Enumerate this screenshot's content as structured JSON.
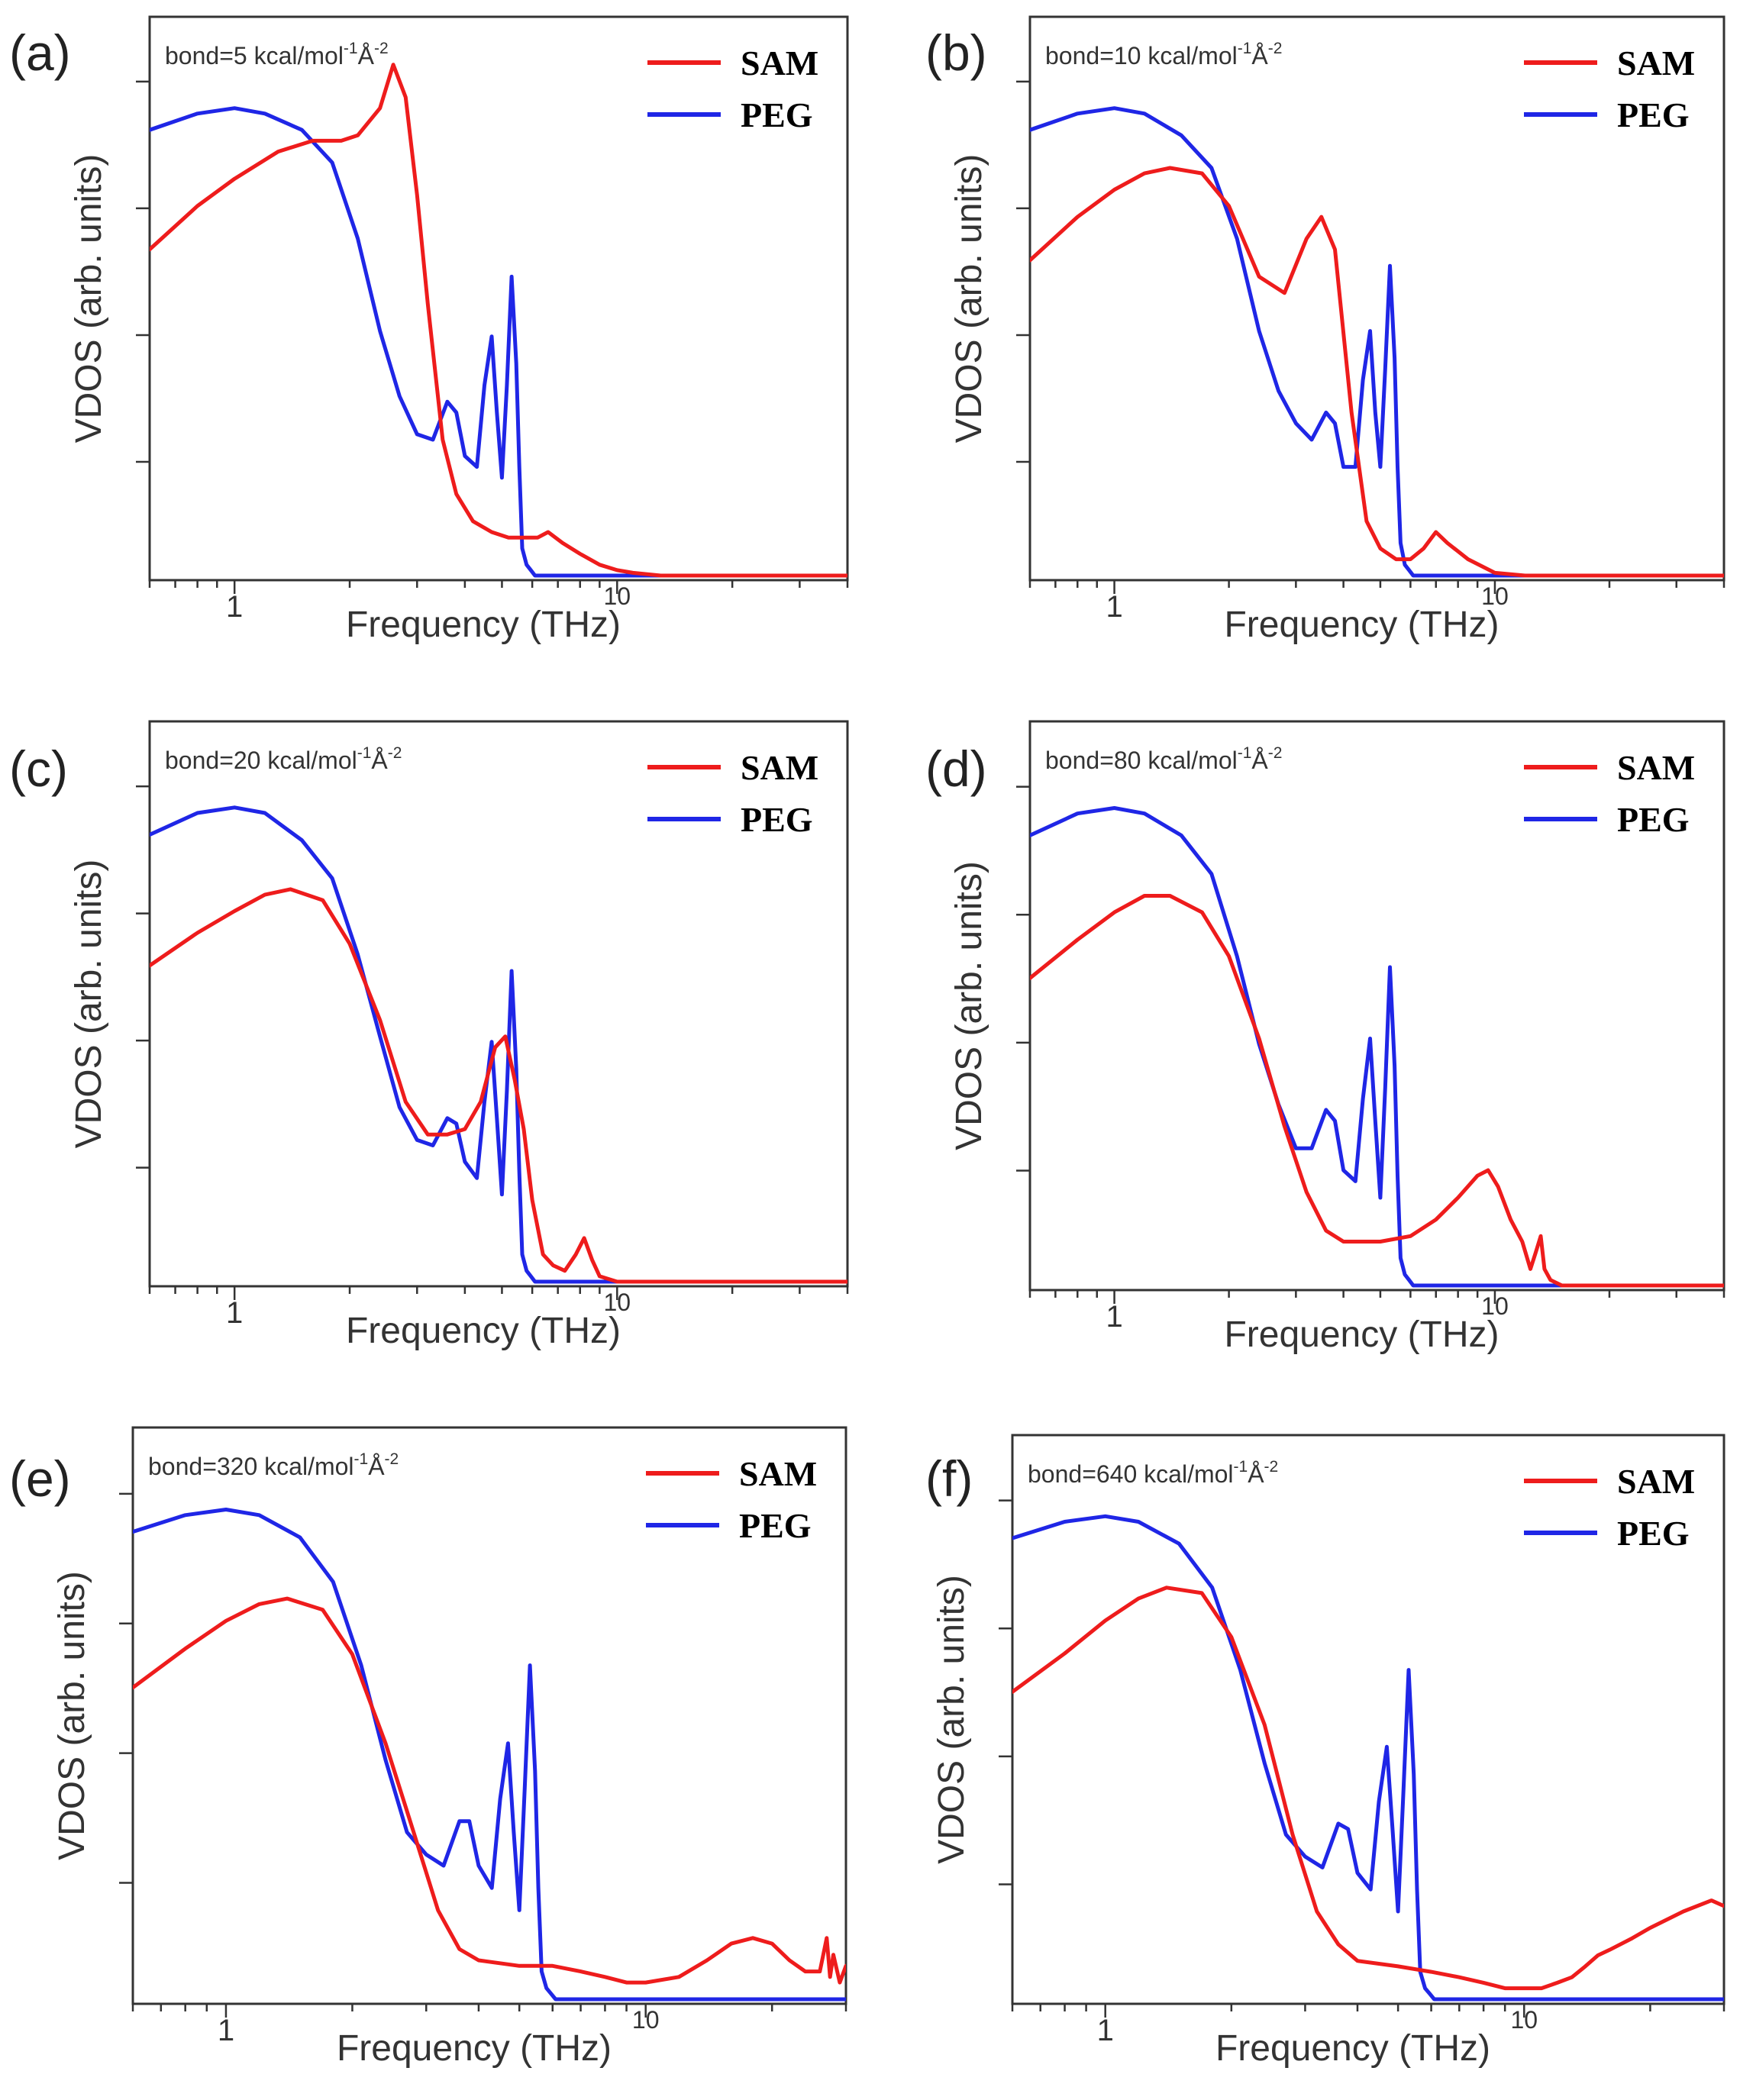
{
  "colors": {
    "SAM": "#ee1c1c",
    "PEG": "#1f26e6"
  },
  "chart_data": [
    {
      "type": "line",
      "panel": "(a)",
      "annotation": {
        "text": "bond=5 kcal/mol",
        "sup1": "-1",
        "mid": "Å",
        "sup2": "-2"
      },
      "xlabel": "Frequency (THz)",
      "ylabel": "VDOS (arb. units)",
      "xscale": "log",
      "xlim": [
        0.6,
        40
      ],
      "xticks": [
        1,
        10
      ],
      "xtick_labels": [
        "1",
        "10"
      ],
      "ylim": [
        0,
        1
      ],
      "legend": "top-right",
      "series": [
        {
          "name": "SAM",
          "x": [
            0.6,
            0.8,
            1.0,
            1.3,
            1.6,
            1.9,
            2.1,
            2.4,
            2.6,
            2.8,
            3.0,
            3.2,
            3.5,
            3.8,
            4.2,
            4.7,
            5.2,
            5.8,
            6.2,
            6.6,
            7.2,
            8.0,
            9.0,
            10,
            11,
            13,
            20,
            40
          ],
          "y": [
            0.6,
            0.68,
            0.73,
            0.78,
            0.8,
            0.8,
            0.81,
            0.86,
            0.94,
            0.88,
            0.7,
            0.5,
            0.25,
            0.15,
            0.1,
            0.08,
            0.07,
            0.07,
            0.07,
            0.08,
            0.06,
            0.04,
            0.02,
            0.01,
            0.005,
            0,
            0,
            0
          ]
        },
        {
          "name": "PEG",
          "x": [
            0.6,
            0.8,
            1.0,
            1.2,
            1.5,
            1.8,
            2.1,
            2.4,
            2.7,
            3.0,
            3.3,
            3.6,
            3.8,
            4.0,
            4.3,
            4.5,
            4.7,
            4.85,
            5.0,
            5.15,
            5.3,
            5.45,
            5.55,
            5.65,
            5.8,
            5.95,
            6.1,
            6.5,
            7,
            10,
            40
          ],
          "y": [
            0.82,
            0.85,
            0.86,
            0.85,
            0.82,
            0.76,
            0.62,
            0.45,
            0.33,
            0.26,
            0.25,
            0.32,
            0.3,
            0.22,
            0.2,
            0.35,
            0.44,
            0.3,
            0.18,
            0.35,
            0.55,
            0.39,
            0.2,
            0.05,
            0.02,
            0.01,
            0,
            0,
            0,
            0,
            0
          ]
        }
      ]
    },
    {
      "type": "line",
      "panel": "(b)",
      "annotation": {
        "text": "bond=10 kcal/mol",
        "sup1": "-1",
        "mid": "Å",
        "sup2": "-2"
      },
      "xlabel": "Frequency (THz)",
      "ylabel": "VDOS (arb. units)",
      "xscale": "log",
      "xlim": [
        0.6,
        40
      ],
      "xticks": [
        1,
        10
      ],
      "xtick_labels": [
        "1",
        "10"
      ],
      "ylim": [
        0,
        1
      ],
      "legend": "top-right",
      "series": [
        {
          "name": "SAM",
          "x": [
            0.6,
            0.8,
            1.0,
            1.2,
            1.4,
            1.7,
            2.0,
            2.4,
            2.8,
            3.2,
            3.5,
            3.8,
            4.2,
            4.6,
            5.0,
            5.5,
            6.0,
            6.5,
            7.0,
            7.5,
            8.5,
            10,
            12,
            40
          ],
          "y": [
            0.58,
            0.66,
            0.71,
            0.74,
            0.75,
            0.74,
            0.68,
            0.55,
            0.52,
            0.62,
            0.66,
            0.6,
            0.3,
            0.1,
            0.05,
            0.03,
            0.03,
            0.05,
            0.08,
            0.06,
            0.03,
            0.005,
            0,
            0
          ]
        },
        {
          "name": "PEG",
          "x": [
            0.6,
            0.8,
            1.0,
            1.2,
            1.5,
            1.8,
            2.1,
            2.4,
            2.7,
            3.0,
            3.3,
            3.6,
            3.8,
            4.0,
            4.3,
            4.5,
            4.7,
            4.85,
            5.0,
            5.15,
            5.3,
            5.45,
            5.55,
            5.65,
            5.8,
            5.95,
            6.1,
            6.5,
            7,
            10,
            40
          ],
          "y": [
            0.82,
            0.85,
            0.86,
            0.85,
            0.81,
            0.75,
            0.62,
            0.45,
            0.34,
            0.28,
            0.25,
            0.3,
            0.28,
            0.2,
            0.2,
            0.36,
            0.45,
            0.3,
            0.2,
            0.38,
            0.57,
            0.4,
            0.2,
            0.06,
            0.02,
            0.01,
            0,
            0,
            0,
            0,
            0
          ]
        }
      ]
    },
    {
      "type": "line",
      "panel": "(c)",
      "annotation": {
        "text": "bond=20 kcal/mol",
        "sup1": "-1",
        "mid": "Å",
        "sup2": "-2"
      },
      "xlabel": "Frequency (THz)",
      "ylabel": "VDOS (arb. units)",
      "xscale": "log",
      "xlim": [
        0.6,
        40
      ],
      "xticks": [
        1,
        10
      ],
      "xtick_labels": [
        "1",
        "10"
      ],
      "ylim": [
        0,
        1
      ],
      "legend": "top-right",
      "series": [
        {
          "name": "SAM",
          "x": [
            0.6,
            0.8,
            1.0,
            1.2,
            1.4,
            1.7,
            2.0,
            2.4,
            2.8,
            3.2,
            3.6,
            4.0,
            4.4,
            4.8,
            5.1,
            5.4,
            5.7,
            6.0,
            6.4,
            6.8,
            7.3,
            7.8,
            8.2,
            8.6,
            9,
            10,
            12,
            40
          ],
          "y": [
            0.58,
            0.64,
            0.68,
            0.71,
            0.72,
            0.7,
            0.62,
            0.48,
            0.33,
            0.27,
            0.27,
            0.28,
            0.33,
            0.43,
            0.45,
            0.37,
            0.28,
            0.15,
            0.05,
            0.03,
            0.02,
            0.05,
            0.08,
            0.04,
            0.01,
            0,
            0,
            0
          ]
        },
        {
          "name": "PEG",
          "x": [
            0.6,
            0.8,
            1.0,
            1.2,
            1.5,
            1.8,
            2.1,
            2.4,
            2.7,
            3.0,
            3.3,
            3.6,
            3.8,
            4.0,
            4.3,
            4.5,
            4.7,
            4.85,
            5.0,
            5.15,
            5.3,
            5.45,
            5.55,
            5.65,
            5.8,
            5.95,
            6.1,
            6.5,
            7,
            10,
            40
          ],
          "y": [
            0.82,
            0.86,
            0.87,
            0.86,
            0.81,
            0.74,
            0.6,
            0.45,
            0.32,
            0.26,
            0.25,
            0.3,
            0.29,
            0.22,
            0.19,
            0.33,
            0.44,
            0.3,
            0.16,
            0.35,
            0.57,
            0.39,
            0.2,
            0.05,
            0.02,
            0.01,
            0,
            0,
            0,
            0,
            0
          ]
        }
      ]
    },
    {
      "type": "line",
      "panel": "(d)",
      "annotation": {
        "text": "bond=80 kcal/mol",
        "sup1": "-1",
        "mid": "Å",
        "sup2": "-2"
      },
      "xlabel": "Frequency (THz)",
      "ylabel": "VDOS (arb. units)",
      "xscale": "log",
      "xlim": [
        0.6,
        40
      ],
      "xticks": [
        1,
        10
      ],
      "xtick_labels": [
        "1",
        "10"
      ],
      "ylim": [
        0,
        1
      ],
      "legend": "top-right",
      "series": [
        {
          "name": "SAM",
          "x": [
            0.6,
            0.8,
            1.0,
            1.2,
            1.4,
            1.7,
            2.0,
            2.4,
            2.8,
            3.2,
            3.6,
            4.0,
            5.0,
            6.0,
            7.0,
            8.0,
            9.0,
            9.6,
            10.2,
            11,
            11.8,
            12.4,
            12.8,
            13.2,
            13.5,
            14,
            15,
            16,
            20,
            40
          ],
          "y": [
            0.56,
            0.63,
            0.68,
            0.71,
            0.71,
            0.68,
            0.6,
            0.45,
            0.29,
            0.17,
            0.1,
            0.08,
            0.08,
            0.09,
            0.12,
            0.16,
            0.2,
            0.21,
            0.18,
            0.12,
            0.08,
            0.03,
            0.06,
            0.09,
            0.03,
            0.01,
            0,
            0,
            0,
            0
          ]
        },
        {
          "name": "PEG",
          "x": [
            0.6,
            0.8,
            1.0,
            1.2,
            1.5,
            1.8,
            2.1,
            2.4,
            2.7,
            3.0,
            3.3,
            3.6,
            3.8,
            4.0,
            4.3,
            4.5,
            4.7,
            4.85,
            5.0,
            5.15,
            5.3,
            5.45,
            5.55,
            5.65,
            5.8,
            5.95,
            6.1,
            6.5,
            7,
            10,
            40
          ],
          "y": [
            0.82,
            0.86,
            0.87,
            0.86,
            0.82,
            0.75,
            0.6,
            0.44,
            0.33,
            0.25,
            0.25,
            0.32,
            0.3,
            0.21,
            0.19,
            0.34,
            0.45,
            0.3,
            0.16,
            0.36,
            0.58,
            0.4,
            0.2,
            0.05,
            0.02,
            0.01,
            0,
            0,
            0,
            0,
            0
          ]
        }
      ]
    },
    {
      "type": "line",
      "panel": "(e)",
      "annotation": {
        "text": "bond=320 kcal/mol",
        "sup1": "-1",
        "mid": "Å",
        "sup2": "-2"
      },
      "xlabel": "Frequency (THz)",
      "ylabel": "VDOS (arb. units)",
      "xscale": "log",
      "xlim": [
        0.6,
        30
      ],
      "xticks": [
        1,
        10
      ],
      "xtick_labels": [
        "1",
        "10"
      ],
      "ylim": [
        0,
        1
      ],
      "legend": "top-right",
      "series": [
        {
          "name": "SAM",
          "x": [
            0.6,
            0.8,
            1.0,
            1.2,
            1.4,
            1.7,
            2.0,
            2.4,
            2.8,
            3.2,
            3.6,
            4.0,
            5.0,
            6.0,
            7.0,
            8.0,
            9.0,
            10,
            12,
            14,
            16,
            18,
            20,
            22,
            24,
            26,
            27,
            27.5,
            28,
            29,
            30
          ],
          "y": [
            0.56,
            0.63,
            0.68,
            0.71,
            0.72,
            0.7,
            0.62,
            0.46,
            0.3,
            0.16,
            0.09,
            0.07,
            0.06,
            0.06,
            0.05,
            0.04,
            0.03,
            0.03,
            0.04,
            0.07,
            0.1,
            0.11,
            0.1,
            0.07,
            0.05,
            0.05,
            0.11,
            0.04,
            0.08,
            0.03,
            0.06
          ]
        },
        {
          "name": "PEG",
          "x": [
            0.6,
            0.8,
            1.0,
            1.2,
            1.5,
            1.8,
            2.1,
            2.4,
            2.7,
            3.0,
            3.3,
            3.6,
            3.8,
            4.0,
            4.3,
            4.5,
            4.7,
            4.85,
            5.0,
            5.15,
            5.3,
            5.45,
            5.55,
            5.65,
            5.8,
            5.95,
            6.1,
            6.5,
            7,
            10,
            30
          ],
          "y": [
            0.84,
            0.87,
            0.88,
            0.87,
            0.83,
            0.75,
            0.6,
            0.43,
            0.3,
            0.26,
            0.24,
            0.32,
            0.32,
            0.24,
            0.2,
            0.36,
            0.46,
            0.3,
            0.16,
            0.38,
            0.6,
            0.41,
            0.2,
            0.05,
            0.02,
            0.01,
            0,
            0,
            0,
            0,
            0
          ]
        }
      ]
    },
    {
      "type": "line",
      "panel": "(f)",
      "annotation": {
        "text": "bond=640 kcal/mol",
        "sup1": "-1",
        "mid": "Å",
        "sup2": "-2"
      },
      "xlabel": "Frequency (THz)",
      "ylabel": "VDOS (arb. units)",
      "xscale": "log",
      "xlim": [
        0.6,
        30
      ],
      "xticks": [
        1,
        10
      ],
      "xtick_labels": [
        "1",
        "10"
      ],
      "ylim": [
        0,
        1
      ],
      "legend": "top-right",
      "series": [
        {
          "name": "SAM",
          "x": [
            0.6,
            0.8,
            1.0,
            1.2,
            1.4,
            1.7,
            2.0,
            2.4,
            2.8,
            3.2,
            3.6,
            4.0,
            5.0,
            6.0,
            7.0,
            8.0,
            9.0,
            10,
            11,
            12,
            13,
            14,
            15,
            16,
            18,
            20,
            24,
            28,
            30
          ],
          "y": [
            0.56,
            0.63,
            0.69,
            0.73,
            0.75,
            0.74,
            0.66,
            0.5,
            0.3,
            0.16,
            0.1,
            0.07,
            0.06,
            0.05,
            0.04,
            0.03,
            0.02,
            0.02,
            0.02,
            0.03,
            0.04,
            0.06,
            0.08,
            0.09,
            0.11,
            0.13,
            0.16,
            0.18,
            0.17
          ]
        },
        {
          "name": "PEG",
          "x": [
            0.6,
            0.8,
            1.0,
            1.2,
            1.5,
            1.8,
            2.1,
            2.4,
            2.7,
            3.0,
            3.3,
            3.6,
            3.8,
            4.0,
            4.3,
            4.5,
            4.7,
            4.85,
            5.0,
            5.15,
            5.3,
            5.45,
            5.55,
            5.65,
            5.8,
            5.95,
            6.1,
            6.5,
            7,
            10,
            30
          ],
          "y": [
            0.84,
            0.87,
            0.88,
            0.87,
            0.83,
            0.75,
            0.6,
            0.43,
            0.3,
            0.26,
            0.24,
            0.32,
            0.31,
            0.23,
            0.2,
            0.36,
            0.46,
            0.31,
            0.16,
            0.38,
            0.6,
            0.41,
            0.2,
            0.05,
            0.02,
            0.01,
            0,
            0,
            0,
            0,
            0
          ]
        }
      ]
    }
  ]
}
